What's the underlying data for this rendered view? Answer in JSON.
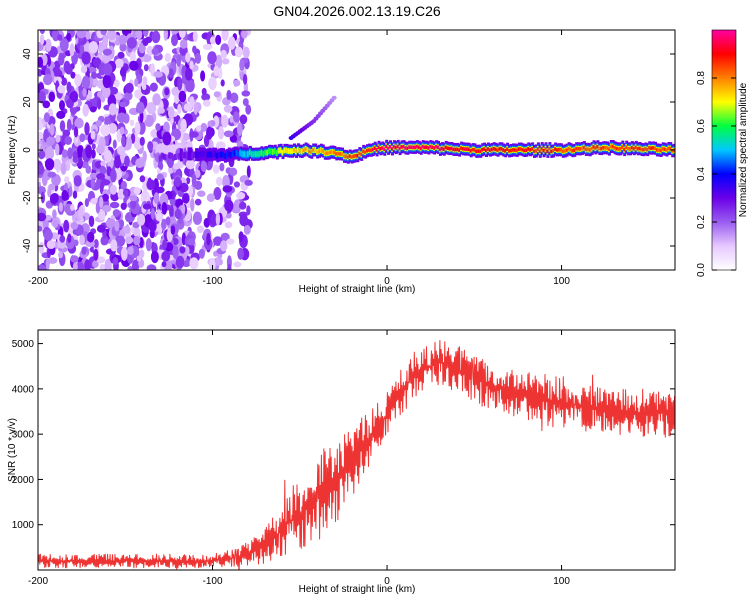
{
  "figure_title": "GN04.2026.002.13.19.C26",
  "chart_data": [
    {
      "type": "heatmap",
      "title": "GN04.2026.002.13.19.C26",
      "xlabel": "Height of straight line (km)",
      "ylabel": "Frequency (Hz)",
      "xlim": [
        -200,
        165
      ],
      "ylim": [
        -50,
        50
      ],
      "x_ticks": [
        -200,
        -100,
        0,
        100
      ],
      "y_ticks": [
        -40,
        -20,
        0,
        20,
        40
      ],
      "colorbar": {
        "label": "Normalized spectral amplitude",
        "range": [
          0,
          1
        ],
        "ticks": [
          0.0,
          0.2,
          0.4,
          0.6,
          0.8
        ],
        "colors": [
          "#ffffff",
          "#e6c8ff",
          "#9a5cf0",
          "#6a00e8",
          "#0000ff",
          "#00c8ff",
          "#00ff40",
          "#ffff00",
          "#ff8000",
          "#ff0000",
          "#ff00a0"
        ]
      },
      "noise_region": {
        "x_range": [
          -200,
          -85
        ],
        "dominant_amplitude": 0.25
      },
      "ridge": [
        {
          "x": -130,
          "freq": -3,
          "amp": 0.25
        },
        {
          "x": -110,
          "freq": -2,
          "amp": 0.3
        },
        {
          "x": -90,
          "freq": -2,
          "amp": 0.4
        },
        {
          "x": -70,
          "freq": -1,
          "amp": 0.6
        },
        {
          "x": -50,
          "freq": 0,
          "amp": 0.75
        },
        {
          "x": -30,
          "freq": -1,
          "amp": 0.8
        },
        {
          "x": -20,
          "freq": -3,
          "amp": 0.85
        },
        {
          "x": -10,
          "freq": 0,
          "amp": 0.9
        },
        {
          "x": 0,
          "freq": 1,
          "amp": 0.95
        },
        {
          "x": 25,
          "freq": 1,
          "amp": 0.95
        },
        {
          "x": 50,
          "freq": 0,
          "amp": 0.9
        },
        {
          "x": 75,
          "freq": 0,
          "amp": 0.9
        },
        {
          "x": 100,
          "freq": 0,
          "amp": 0.85
        },
        {
          "x": 125,
          "freq": 1,
          "amp": 0.85
        },
        {
          "x": 165,
          "freq": 0,
          "amp": 0.85
        }
      ],
      "branch": [
        {
          "x": -55,
          "freq": 5,
          "amp": 0.35
        },
        {
          "x": -42,
          "freq": 12,
          "amp": 0.25
        },
        {
          "x": -30,
          "freq": 22,
          "amp": 0.15
        }
      ]
    },
    {
      "type": "line",
      "xlabel": "Height of straight line (km)",
      "ylabel": "SNR (10 * v/v)",
      "xlim": [
        -200,
        165
      ],
      "ylim": [
        0,
        5300
      ],
      "x_ticks": [
        -200,
        -100,
        0,
        100
      ],
      "y_ticks": [
        1000,
        2000,
        3000,
        4000,
        5000
      ],
      "color": "#ee3333",
      "envelope": [
        {
          "x": -200,
          "low": 50,
          "high": 350
        },
        {
          "x": -100,
          "low": 50,
          "high": 350
        },
        {
          "x": -85,
          "low": 80,
          "high": 500
        },
        {
          "x": -70,
          "low": 150,
          "high": 900
        },
        {
          "x": -55,
          "low": 400,
          "high": 1800
        },
        {
          "x": -40,
          "low": 600,
          "high": 2600
        },
        {
          "x": -25,
          "low": 1200,
          "high": 3000
        },
        {
          "x": -10,
          "low": 2300,
          "high": 3600
        },
        {
          "x": 0,
          "low": 2900,
          "high": 4000
        },
        {
          "x": 15,
          "low": 3800,
          "high": 4800
        },
        {
          "x": 30,
          "low": 4100,
          "high": 5100
        },
        {
          "x": 45,
          "low": 3800,
          "high": 4900
        },
        {
          "x": 60,
          "low": 3500,
          "high": 4600
        },
        {
          "x": 80,
          "low": 3300,
          "high": 4400
        },
        {
          "x": 100,
          "low": 3100,
          "high": 4300
        },
        {
          "x": 130,
          "low": 3000,
          "high": 4000
        },
        {
          "x": 165,
          "low": 2900,
          "high": 4000
        }
      ]
    }
  ]
}
